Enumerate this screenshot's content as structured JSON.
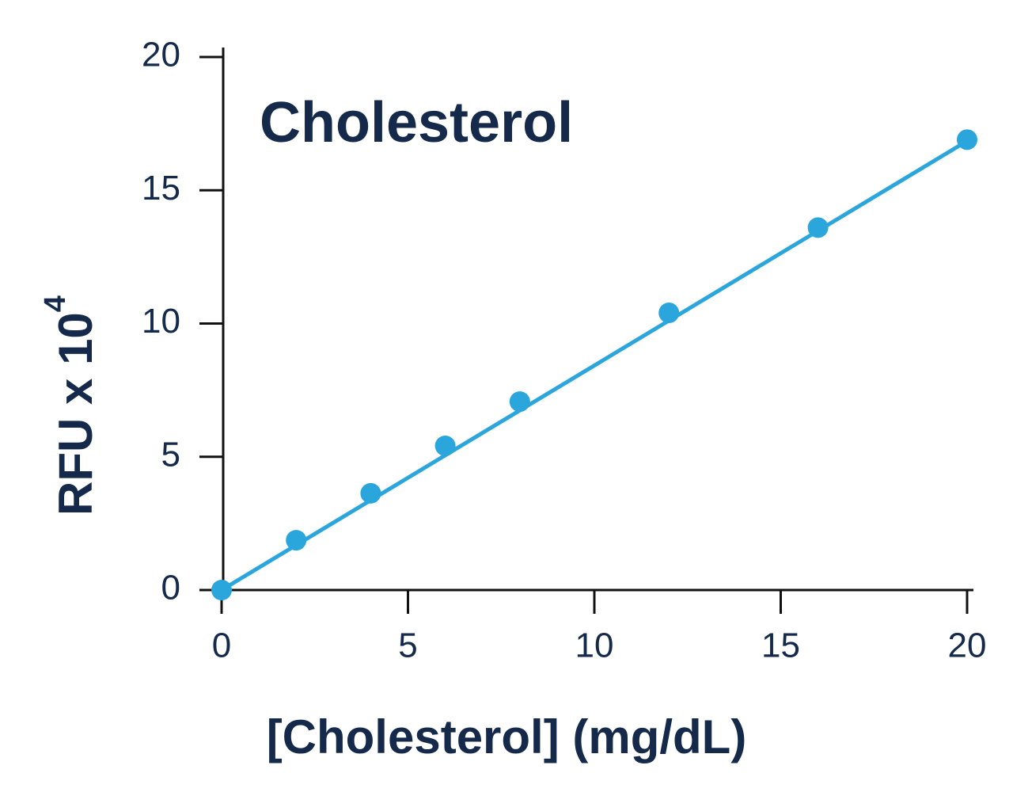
{
  "chart_data": {
    "type": "scatter",
    "title": "Cholesterol",
    "x_label": "[Cholesterol] (mg/dL)",
    "y_label": "RFU x 10",
    "y_label_exponent": "4",
    "x": [
      0,
      2,
      4,
      6,
      8,
      12,
      16,
      20
    ],
    "values": [
      0,
      1.87,
      3.63,
      5.41,
      7.07,
      10.4,
      13.6,
      16.9
    ],
    "color": "#2ba6dc",
    "fit_line": {
      "x": [
        0,
        20
      ],
      "values": [
        0,
        16.85
      ]
    },
    "xlim": [
      0,
      20
    ],
    "ylim": [
      0,
      20
    ],
    "xticks": [
      0,
      5,
      10,
      15,
      20
    ],
    "yticks": [
      0,
      5,
      10,
      15,
      20
    ]
  }
}
